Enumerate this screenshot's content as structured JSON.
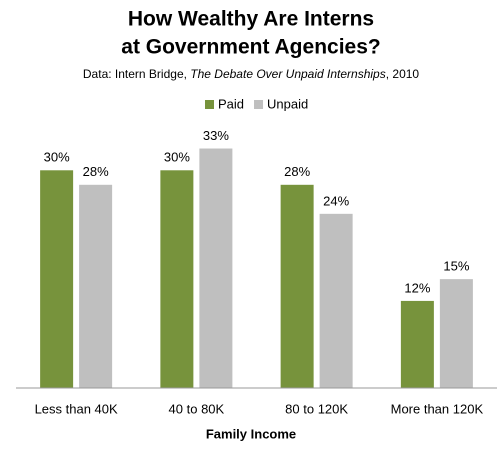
{
  "chart_data": {
    "type": "bar",
    "title": [
      "How Wealthy Are Interns",
      "at Government Agencies?"
    ],
    "subtitle": [
      "Data: Intern Bridge, ",
      "The Debate Over Unpaid Internships",
      ", 2010"
    ],
    "categories": [
      "Less than 40K",
      "40 to 80K",
      "80 to 120K",
      "More than 120K"
    ],
    "series": [
      {
        "name": "Paid",
        "color": "#77933c",
        "values": [
          30,
          30,
          28,
          12
        ],
        "value_labels": [
          "30%",
          "30%",
          "28%",
          "12%"
        ]
      },
      {
        "name": "Unpaid",
        "color": "#bfbfbf",
        "values": [
          28,
          33,
          24,
          15
        ],
        "value_labels": [
          "28%",
          "33%",
          "24%",
          "15%"
        ]
      }
    ],
    "xlabel": "Family Income",
    "ylim": [
      0,
      35
    ],
    "legend": "top"
  }
}
